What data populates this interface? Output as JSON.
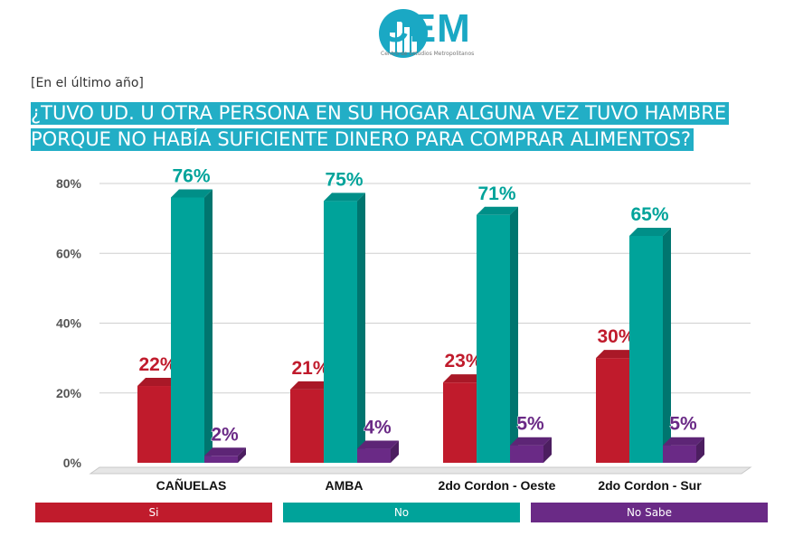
{
  "header": {
    "logo_text": "CEM",
    "logo_subtext": "Centro de Estudios Metropolitanos",
    "logo_icon": "building-bars-icon",
    "subtitle": "[En el último año]",
    "title": "¿TUVO UD. U OTRA PERSONA EN SU HOGAR ALGUNA VEZ TUVO HAMBRE PORQUE NO HABÍA SUFICIENTE DINERO PARA COMPRAR ALIMENTOS?"
  },
  "colors": {
    "accent": "#22aec6",
    "si": "#c01b2c",
    "no": "#00a39a",
    "no_sabe": "#6a2a86"
  },
  "chart_data": {
    "type": "bar",
    "categories": [
      "CAÑUELAS",
      "AMBA",
      "2do Cordon - Oeste",
      "2do Cordon - Sur"
    ],
    "series": [
      {
        "name": "Si",
        "values": [
          22,
          21,
          23,
          30
        ],
        "labels": [
          "22%",
          "21%",
          "23%",
          "30%"
        ]
      },
      {
        "name": "No",
        "values": [
          76,
          75,
          71,
          65
        ],
        "labels": [
          "76%",
          "75%",
          "71%",
          "65%"
        ]
      },
      {
        "name": "No Sabe",
        "values": [
          2,
          4,
          5,
          5
        ],
        "labels": [
          "2%",
          "4%",
          "5%",
          "5%"
        ]
      }
    ],
    "y_ticks": [
      "0%",
      "20%",
      "40%",
      "60%",
      "80%"
    ],
    "ylim": [
      0,
      80
    ],
    "grid": true,
    "legend_position": "bottom",
    "legend": [
      "Si",
      "No",
      "No Sabe"
    ]
  }
}
